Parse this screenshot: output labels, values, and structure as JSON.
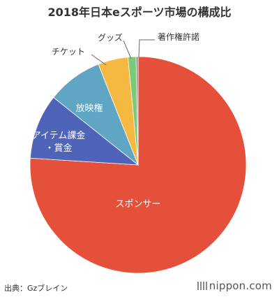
{
  "chart_data": {
    "type": "pie",
    "title": "2018年日本eスポーツ市場の構成比",
    "slices": [
      {
        "label": "スポンサー",
        "value": 76.0,
        "color": "#e5503a",
        "label_placement": "inside"
      },
      {
        "label": "アイテム課金・賞金",
        "value": 9.7,
        "color": "#4f64b8",
        "label_placement": "inside"
      },
      {
        "label": "放映権",
        "value": 8.3,
        "color": "#5fa6c4",
        "label_placement": "inside"
      },
      {
        "label": "チケット",
        "value": 4.5,
        "color": "#f5b941",
        "label_placement": "outside"
      },
      {
        "label": "グッズ",
        "value": 1.2,
        "color": "#7ec87a",
        "label_placement": "outside"
      },
      {
        "label": "著作権許諾",
        "value": 0.3,
        "color": "#8a8a8a",
        "label_placement": "outside"
      }
    ],
    "start": "12 o'clock",
    "direction": "clockwise"
  },
  "source": "出典：Gzブレイン",
  "brand": "nippon.com"
}
